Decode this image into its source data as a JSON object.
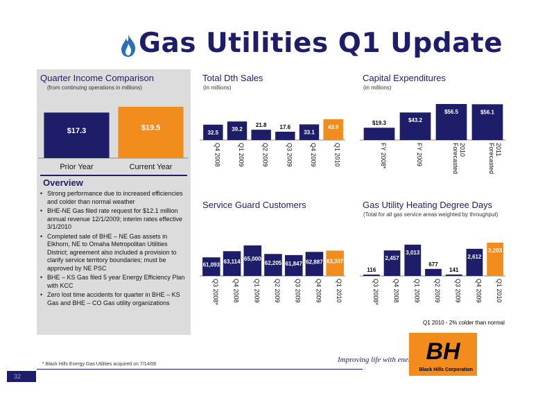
{
  "header": {
    "title": "Gas Utilities Q1 Update",
    "icon": "gas-flame-icon"
  },
  "colors": {
    "navy": "#1d1d6a",
    "orange": "#f28c1c",
    "gray_panel": "#dcdcdc"
  },
  "quarter_income": {
    "title": "Quarter Income Comparison",
    "subtitle": "(from continuing operations in millions)",
    "chart_data": {
      "type": "bar",
      "categories": [
        "Prior Year",
        "Current Year"
      ],
      "values": [
        17.3,
        19.5
      ],
      "labels": [
        "$17.3",
        "$19.5"
      ]
    }
  },
  "total_dth": {
    "title": "Total Dth Sales",
    "subtitle": "(in millions)",
    "chart_data": {
      "type": "bar",
      "categories": [
        "Q4 2008",
        "Q1 2009",
        "Q2 2009",
        "Q3 2009",
        "Q4 2009",
        "Q1 2010"
      ],
      "values": [
        32.5,
        39.2,
        21.8,
        17.6,
        33.1,
        43.9
      ],
      "labels": [
        "32.5",
        "39.2",
        "21.8",
        "17.6",
        "33.1",
        "43.9"
      ]
    }
  },
  "capex": {
    "title": "Capital Expenditures",
    "subtitle": "(in millions)",
    "chart_data": {
      "type": "bar",
      "categories": [
        "FY 2008*",
        "FY 2009",
        "Forecasted 2010",
        "Forecasted 2011"
      ],
      "values": [
        19.3,
        43.2,
        56.5,
        56.1
      ],
      "labels": [
        "$19.3",
        "$43.2",
        "$56.5",
        "$56.1"
      ]
    }
  },
  "service_guard": {
    "title": "Service Guard Customers",
    "chart_data": {
      "type": "bar",
      "categories": [
        "Q3 2008*",
        "Q4 2008",
        "Q1 2009",
        "Q2 2009",
        "Q3 2009",
        "Q4 2009",
        "Q1 2010"
      ],
      "values": [
        61093,
        63114,
        65000,
        62205,
        61847,
        62887,
        63307
      ],
      "labels": [
        "61,093",
        "63,114",
        "65,000",
        "62,205",
        "61,847",
        "62,887",
        "63,307"
      ]
    }
  },
  "heating_dd": {
    "title": "Gas Utility Heating Degree Days",
    "subtitle": "(Total for all gas service areas weighted by throughput)",
    "note": "Q1 2010 - 2% colder than normal",
    "chart_data": {
      "type": "bar",
      "categories": [
        "Q3 2008*",
        "Q4 2008",
        "Q1 2009",
        "Q2 2009",
        "Q3 2009",
        "Q4 2009",
        "Q1 2010"
      ],
      "values": [
        116,
        2457,
        3013,
        677,
        141,
        2612,
        3203
      ],
      "labels": [
        "116",
        "2,457",
        "3,013",
        "677",
        "141",
        "2,612",
        "3,203"
      ]
    }
  },
  "overview": {
    "title": "Overview",
    "bullets": [
      "Strong performance due to increased efficiencies and colder than normal weather",
      "BHE-NE Gas filed rate request for $12.1 million annual revenue 12/1/2009; interim rates effective 3/1/2010",
      "Completed sale of BHE – NE Gas assets in Elkhorn, NE to Omaha Metropolitan Utilities District; agreement also included a provision to clarify service territory boundaries; must be approved by NE PSC",
      "BHE – KS Gas filed 5 year Energy Efficiency Plan with KCC",
      "Zero lost time accidents for quarter in BHE – KS Gas and BHE – CO Gas utility organizations"
    ]
  },
  "footer": {
    "footnote": "* Black Hills Energy Gas Utilities acquired on 7/14/08",
    "page_number": "32",
    "tagline": "Improving life with energy",
    "logo_text": "Black Hills Corporation",
    "logo_mark": "BH"
  }
}
